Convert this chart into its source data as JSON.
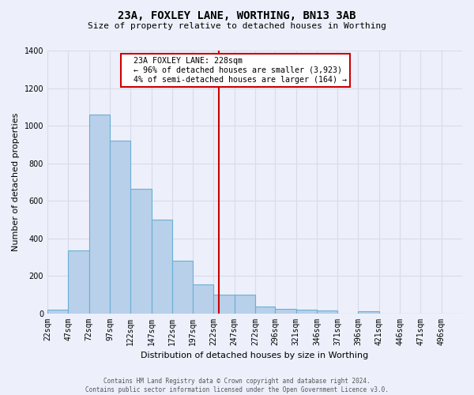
{
  "title": "23A, FOXLEY LANE, WORTHING, BN13 3AB",
  "subtitle": "Size of property relative to detached houses in Worthing",
  "xlabel": "Distribution of detached houses by size in Worthing",
  "ylabel": "Number of detached properties",
  "footer_line1": "Contains HM Land Registry data © Crown copyright and database right 2024.",
  "footer_line2": "Contains public sector information licensed under the Open Government Licence v3.0.",
  "annotation_title": "23A FOXLEY LANE: 228sqm",
  "annotation_line1": "← 96% of detached houses are smaller (3,923)",
  "annotation_line2": "4% of semi-detached houses are larger (164) →",
  "property_size": 228,
  "bin_edges": [
    22,
    47,
    72,
    97,
    122,
    147,
    172,
    197,
    222,
    247,
    272,
    296,
    321,
    346,
    371,
    396,
    421,
    446,
    471,
    496,
    521
  ],
  "bar_heights": [
    20,
    335,
    1060,
    920,
    665,
    500,
    280,
    155,
    100,
    100,
    35,
    25,
    20,
    15,
    0,
    10,
    0,
    0,
    0,
    0
  ],
  "bar_color": "#b8d0ea",
  "bar_edge_color": "#6baed6",
  "vline_color": "#cc0000",
  "vline_x": 228,
  "background_color": "#edf0fa",
  "grid_color": "#d8dce8",
  "annotation_box_color": "#ffffff",
  "annotation_box_edge": "#cc0000",
  "ylim": [
    0,
    1400
  ],
  "yticks": [
    0,
    200,
    400,
    600,
    800,
    1000,
    1200,
    1400
  ],
  "tick_label_fontsize": 7,
  "ylabel_fontsize": 8,
  "xlabel_fontsize": 8
}
